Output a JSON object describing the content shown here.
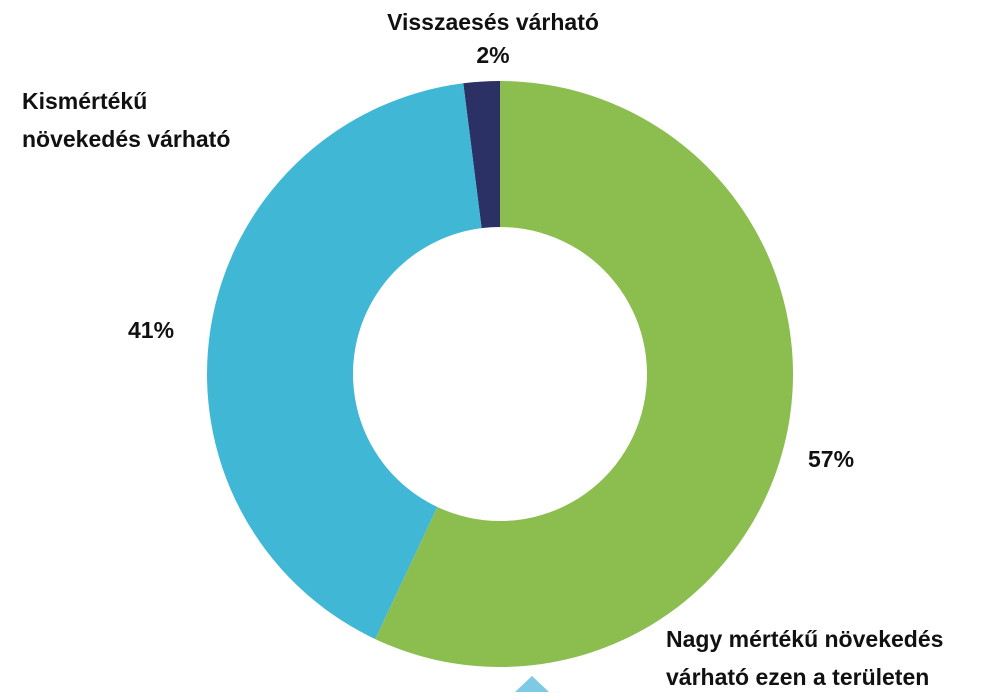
{
  "chart_data": {
    "type": "donut",
    "categories": [
      "Nagy mértékű növekedés várható ezen a területen",
      "Kismértékű növekedés várható",
      "Visszaesés várható"
    ],
    "values": [
      57,
      41,
      2
    ],
    "value_labels": [
      "57%",
      "41%",
      "2%"
    ],
    "colors": [
      "#8bbd4f",
      "#41b7d6",
      "#2b3164"
    ]
  }
}
